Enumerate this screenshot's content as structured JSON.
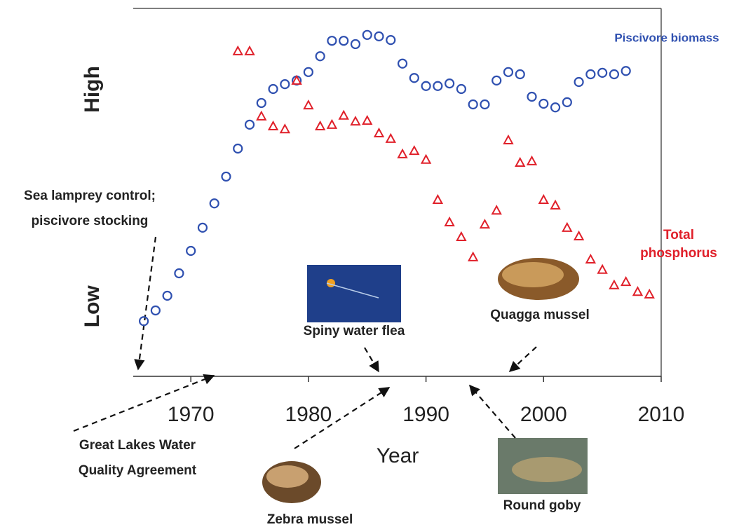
{
  "chart_data": {
    "type": "scatter",
    "x_label": "Year",
    "xlim": [
      1965.1,
      2010
    ],
    "xticks": [
      1970,
      1980,
      1990,
      2000,
      2010
    ],
    "ylim": [
      0,
      100
    ],
    "yticks": [
      {
        "value": 19,
        "label": "Low"
      },
      {
        "value": 78,
        "label": "High"
      }
    ],
    "series": [
      {
        "name": "Piscivore biomass",
        "color": "#2f50b0",
        "marker": "circle",
        "x": [
          1966,
          1967,
          1968,
          1969,
          1970,
          1971,
          1972,
          1973,
          1974,
          1975,
          1976,
          1977,
          1978,
          1979,
          1980,
          1981,
          1982,
          1983,
          1984,
          1985,
          1986,
          1987,
          1988,
          1989,
          1990,
          1991,
          1992,
          1993,
          1994,
          1995,
          1996,
          1997,
          1998,
          1999,
          2000,
          2001,
          2002,
          2003,
          2004,
          2005,
          2006,
          2007
        ],
        "values": [
          15.0,
          17.9,
          21.9,
          28.0,
          34.1,
          40.4,
          47.0,
          54.3,
          61.9,
          68.4,
          74.3,
          78.1,
          79.4,
          80.4,
          82.7,
          87.0,
          91.2,
          91.2,
          90.3,
          92.8,
          92.4,
          91.4,
          85.0,
          81.1,
          78.9,
          78.9,
          79.6,
          78.1,
          73.9,
          73.9,
          80.4,
          82.7,
          82.1,
          76.0,
          74.1,
          73.1,
          74.5,
          80.0,
          82.1,
          82.5,
          82.1,
          83.0
        ]
      },
      {
        "name": [
          "Total",
          "phosphorus"
        ],
        "color": "#e0202a",
        "marker": "triangle",
        "x": [
          1974,
          1975,
          1976,
          1977,
          1978,
          1979,
          1980,
          1981,
          1982,
          1983,
          1984,
          1985,
          1986,
          1987,
          1988,
          1989,
          1990,
          1991,
          1992,
          1993,
          1994,
          1995,
          1996,
          1997,
          1998,
          1999,
          2000,
          2001,
          2002,
          2003,
          2004,
          2005,
          2006,
          2007,
          2008,
          2009
        ],
        "values": [
          88.4,
          88.4,
          70.7,
          68.0,
          67.2,
          80.4,
          73.7,
          68.0,
          68.4,
          70.9,
          69.3,
          69.5,
          66.1,
          64.6,
          60.4,
          61.3,
          58.9,
          48.0,
          41.9,
          37.9,
          32.4,
          41.3,
          45.1,
          64.2,
          58.1,
          58.5,
          48.0,
          46.5,
          40.4,
          38.1,
          31.8,
          29.0,
          24.8,
          25.7,
          23.0,
          22.3
        ]
      }
    ],
    "annotations": [
      {
        "lines": [
          "Sea lamprey control;",
          "piscivore stocking"
        ]
      },
      {
        "lines": [
          "Great Lakes Water",
          "Quality Agreement"
        ]
      },
      {
        "lines": [
          "Spiny water flea"
        ]
      },
      {
        "lines": [
          "Quagga mussel"
        ]
      },
      {
        "lines": [
          "Zebra mussel"
        ]
      },
      {
        "lines": [
          "Round goby"
        ]
      }
    ]
  }
}
